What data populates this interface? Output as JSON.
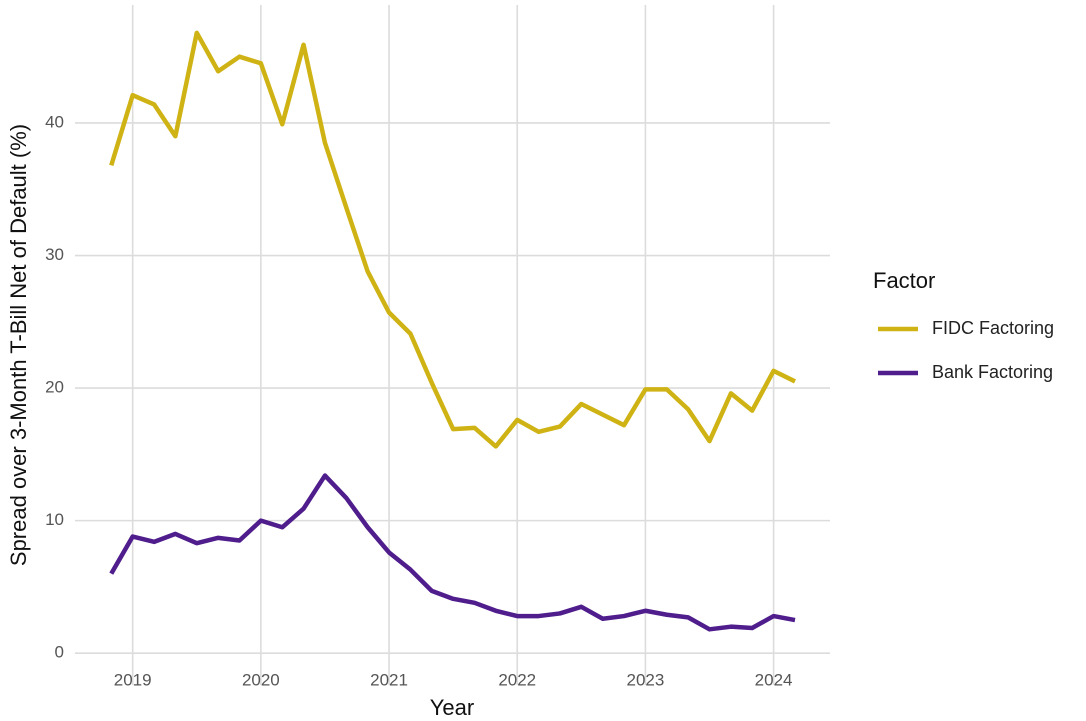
{
  "chart_data": {
    "type": "line",
    "x_label": "Year",
    "y_label": "Spread over 3-Month T-Bill Net of Default (%)",
    "legend_title": "Factor",
    "legend_position": "right",
    "grid": true,
    "x": [
      2018.833,
      2019.0,
      2019.167,
      2019.333,
      2019.5,
      2019.667,
      2019.833,
      2020.0,
      2020.167,
      2020.333,
      2020.5,
      2020.667,
      2020.833,
      2021.0,
      2021.167,
      2021.333,
      2021.5,
      2021.667,
      2021.833,
      2022.0,
      2022.167,
      2022.333,
      2022.5,
      2022.667,
      2022.833,
      2023.0,
      2023.167,
      2023.333,
      2023.5,
      2023.667,
      2023.833,
      2024.0,
      2024.167
    ],
    "series": [
      {
        "name": "FIDC Factoring",
        "color": "#cfb315",
        "values": [
          36.8,
          42.1,
          41.4,
          39.0,
          46.8,
          43.9,
          45.0,
          44.5,
          39.9,
          45.9,
          38.5,
          33.6,
          28.8,
          25.7,
          24.1,
          20.4,
          16.9,
          17.0,
          15.6,
          17.6,
          16.7,
          17.1,
          18.8,
          18.0,
          17.2,
          19.9,
          19.9,
          18.4,
          16.0,
          19.6,
          18.3,
          21.3,
          20.5
        ]
      },
      {
        "name": "Bank Factoring",
        "color": "#4f1d8c",
        "values": [
          6.0,
          8.8,
          8.4,
          9.0,
          8.3,
          8.7,
          8.5,
          10.0,
          9.5,
          10.9,
          13.4,
          11.7,
          9.5,
          7.6,
          6.3,
          4.7,
          4.1,
          3.8,
          3.2,
          2.8,
          2.8,
          3.0,
          3.5,
          2.6,
          2.8,
          3.2,
          2.9,
          2.7,
          1.8,
          2.0,
          1.9,
          2.8,
          2.5
        ]
      }
    ],
    "xlim": [
      2018.55,
      2024.44
    ],
    "xticks": [
      2019,
      2020,
      2021,
      2022,
      2023,
      2024
    ],
    "ylim": [
      -2.4,
      48.9
    ],
    "yticks": [
      0,
      10,
      20,
      30,
      40
    ]
  }
}
